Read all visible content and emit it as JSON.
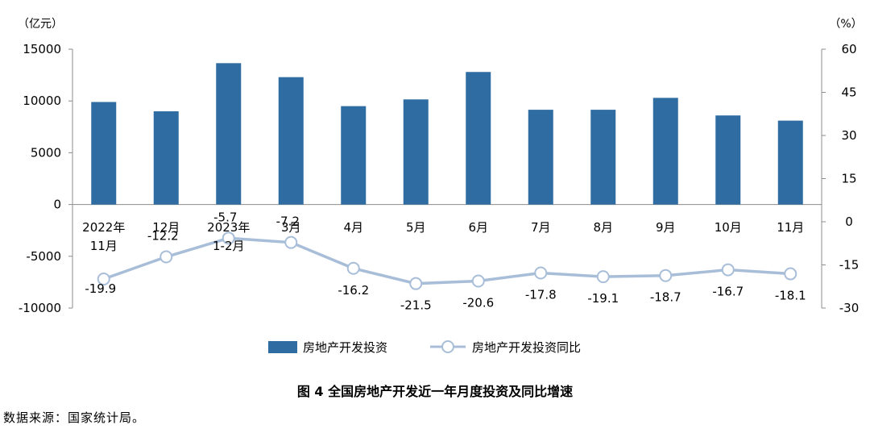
{
  "chart_data": {
    "type": "bar+line",
    "categories": [
      [
        "2022年",
        "11月"
      ],
      [
        "12月"
      ],
      [
        "2023年",
        "1-2月"
      ],
      [
        "3月"
      ],
      [
        "4月"
      ],
      [
        "5月"
      ],
      [
        "6月"
      ],
      [
        "7月"
      ],
      [
        "8月"
      ],
      [
        "9月"
      ],
      [
        "10月"
      ],
      [
        "11月"
      ]
    ],
    "series": [
      {
        "name": "房地产开发投资",
        "type": "bar",
        "axis": "left",
        "color": "#2e6ca1",
        "values": [
          9900,
          9000,
          13650,
          12300,
          9500,
          10150,
          12800,
          9150,
          9150,
          10300,
          8600,
          8100
        ]
      },
      {
        "name": "房地产开发投资同比",
        "type": "line",
        "axis": "right",
        "color": "#a8bed8",
        "values": [
          -19.9,
          -12.2,
          -5.7,
          -7.2,
          -16.2,
          -21.5,
          -20.6,
          -17.8,
          -19.1,
          -18.7,
          -16.7,
          -18.1
        ],
        "labels": [
          "-19.9",
          "-12.2",
          "-5.7",
          "-7.2",
          "-16.2",
          "-21.5",
          "-20.6",
          "-17.8",
          "-19.1",
          "-18.7",
          "-16.7",
          "-18.1"
        ]
      }
    ],
    "y_left": {
      "unit": "（亿元）",
      "ylim": [
        -10000,
        15000
      ],
      "ticks": [
        "15000",
        "10000",
        "5000",
        "0",
        "-5000",
        "-10000"
      ]
    },
    "y_right": {
      "unit": "（%）",
      "ylim": [
        -30,
        60
      ],
      "ticks": [
        "60",
        "45",
        "30",
        "15",
        "0",
        "-15",
        "-30"
      ]
    },
    "grid": false,
    "legend_position": "bottom"
  },
  "caption": "图 4    全国房地产开发近一年月度投资及同比增速",
  "source": "数据来源：国家统计局。"
}
